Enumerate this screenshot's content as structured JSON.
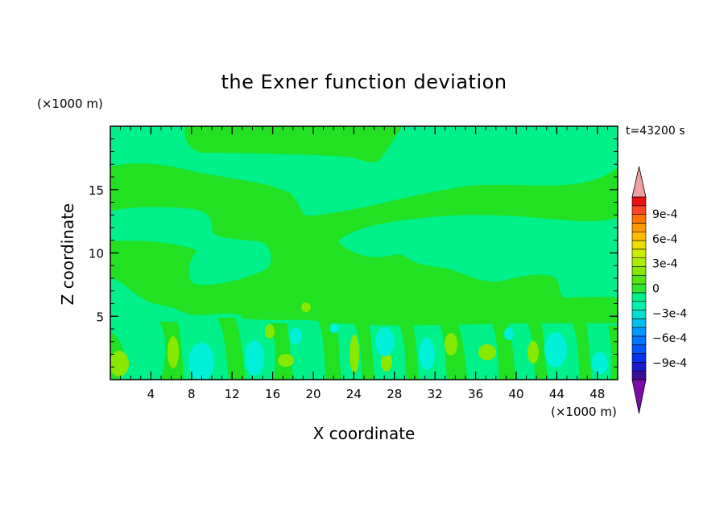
{
  "chart_data": {
    "type": "heatmap",
    "title": "the Exner function deviation",
    "xlabel": "X coordinate",
    "ylabel": "Z coordinate",
    "x_unit": "(×1000 m)",
    "z_unit": "(×1000 m)",
    "time_label": "t=43200 s",
    "xlim": [
      0,
      50
    ],
    "ylim": [
      0,
      20
    ],
    "x_ticks": [
      "4",
      "8",
      "12",
      "16",
      "20",
      "24",
      "28",
      "32",
      "36",
      "40",
      "44",
      "48"
    ],
    "y_ticks": [
      "5",
      "10",
      "15"
    ],
    "x_tick_values": [
      4,
      8,
      12,
      16,
      20,
      24,
      28,
      32,
      36,
      40,
      44,
      48
    ],
    "y_tick_values": [
      5,
      10,
      15
    ],
    "colorbar": {
      "labels": [
        "9e-4",
        "6e-4",
        "3e-4",
        "0",
        "−3e-4",
        "−6e-4",
        "−9e-4"
      ],
      "label_values": [
        0.0009,
        0.0006,
        0.0003,
        0,
        -0.0003,
        -0.0006,
        -0.0009
      ],
      "levels": [
        -0.0011,
        -0.001,
        -0.0009,
        -0.0008,
        -0.0007,
        -0.0006,
        -0.0005,
        -0.0004,
        -0.0003,
        -0.0002,
        -0.0001,
        0,
        0.0001,
        0.0002,
        0.0003,
        0.0004,
        0.0005,
        0.0006,
        0.0007,
        0.0008,
        0.0009,
        0.001,
        0.0011
      ],
      "colors": [
        "#7a0da6",
        "#3a0d9a",
        "#1a1acc",
        "#0033ee",
        "#0055ff",
        "#0077ff",
        "#0099ff",
        "#00c0f0",
        "#00e0d0",
        "#00f0b0",
        "#00f08a",
        "#33e533",
        "#55e511",
        "#88e800",
        "#aaee00",
        "#cceb00",
        "#eedd00",
        "#ffbb00",
        "#ff9900",
        "#ff7700",
        "#ff4422",
        "#ee1111",
        "#f0a0a0"
      ],
      "extend": "both"
    },
    "field_levels_present": [
      -0.0002,
      -0.0001,
      0,
      0.0001,
      0.0002
    ],
    "field_note_colors": {
      "neg2": "#00f0d8",
      "neg1": "#00f08a",
      "zero": "#22e022",
      "pos1": "#66e41a",
      "pos2": "#aaee00",
      "pos3": "#ddeb00"
    }
  }
}
